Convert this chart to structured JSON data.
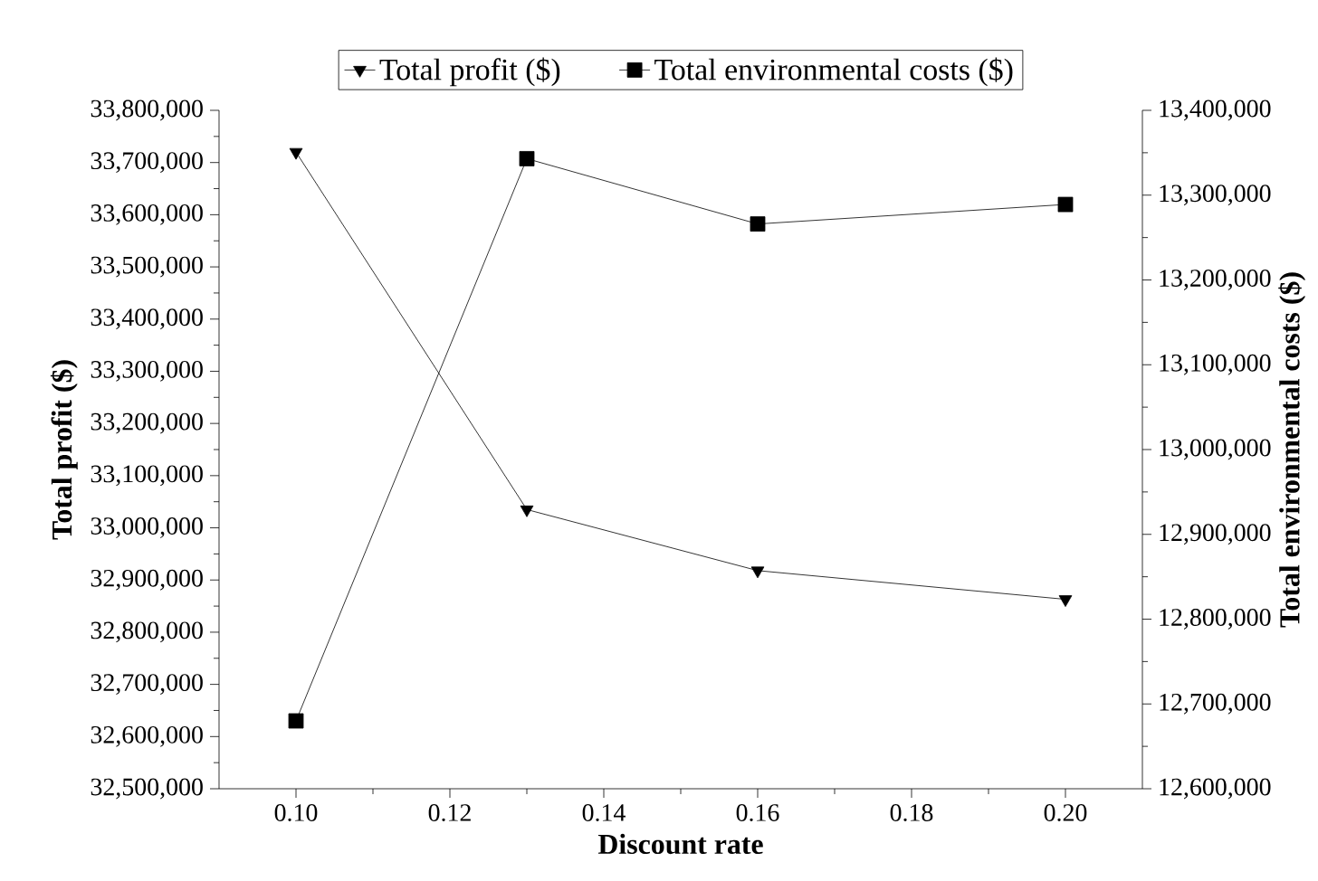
{
  "chart_data": {
    "type": "line",
    "xlabel": "Discount rate",
    "ylabel": "Total profit ($)",
    "y2label": "Total environmental costs ($)",
    "x": [
      0.1,
      0.13,
      0.16,
      0.2
    ],
    "series": [
      {
        "name": "Total profit ($)",
        "color": "#000000",
        "marker": "triangle",
        "values": [
          33720000,
          33035000,
          32918000,
          32863000
        ]
      },
      {
        "name": "Total environmental costs ($)",
        "color": "#000000",
        "marker": "square",
        "axis": "y2",
        "values": [
          12680000,
          13343000,
          13266000,
          13289000
        ]
      }
    ],
    "xlim": [
      0.09,
      0.21
    ],
    "xticks": [
      {
        "value": 0.1,
        "label": "0.10"
      },
      {
        "value": 0.12,
        "label": "0.12"
      },
      {
        "value": 0.14,
        "label": "0.14"
      },
      {
        "value": 0.16,
        "label": "0.16"
      },
      {
        "value": 0.18,
        "label": "0.18"
      },
      {
        "value": 0.2,
        "label": "0.20"
      }
    ],
    "ylim": [
      32500000,
      33800000
    ],
    "yticks": [
      {
        "value": 32500000,
        "label": "32,500,000"
      },
      {
        "value": 32600000,
        "label": "32,600,000"
      },
      {
        "value": 32700000,
        "label": "32,700,000"
      },
      {
        "value": 32800000,
        "label": "32,800,000"
      },
      {
        "value": 32900000,
        "label": "32,900,000"
      },
      {
        "value": 33000000,
        "label": "33,000,000"
      },
      {
        "value": 33100000,
        "label": "33,100,000"
      },
      {
        "value": 33200000,
        "label": "33,200,000"
      },
      {
        "value": 33300000,
        "label": "33,300,000"
      },
      {
        "value": 33400000,
        "label": "33,400,000"
      },
      {
        "value": 33500000,
        "label": "33,500,000"
      },
      {
        "value": 33600000,
        "label": "33,600,000"
      },
      {
        "value": 33700000,
        "label": "33,700,000"
      },
      {
        "value": 33800000,
        "label": "33,800,000"
      }
    ],
    "y2lim": [
      12600000,
      13400000
    ],
    "y2ticks": [
      {
        "value": 12600000,
        "label": "12,600,000"
      },
      {
        "value": 12700000,
        "label": "12,700,000"
      },
      {
        "value": 12800000,
        "label": "12,800,000"
      },
      {
        "value": 12900000,
        "label": "12,900,000"
      },
      {
        "value": 13000000,
        "label": "13,000,000"
      },
      {
        "value": 13100000,
        "label": "13,100,000"
      },
      {
        "value": 13200000,
        "label": "13,200,000"
      },
      {
        "value": 13300000,
        "label": "13,300,000"
      },
      {
        "value": 13400000,
        "label": "13,400,000"
      }
    ],
    "grid": false,
    "legend": "top",
    "line_style": "solid"
  }
}
